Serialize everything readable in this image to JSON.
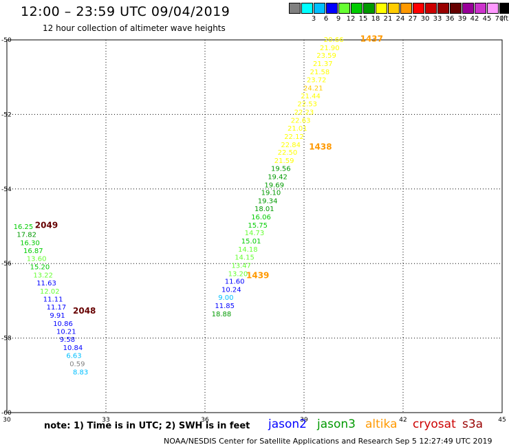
{
  "header": {
    "title": "12:00 – 23:59 UTC 09/04/2019",
    "subtitle": "12 hour collection of altimeter wave heights"
  },
  "legend": {
    "unit": "(ft)",
    "items": [
      {
        "label": "",
        "color": "#808080"
      },
      {
        "label": "3",
        "color": "#00ffff"
      },
      {
        "label": "6",
        "color": "#00bfff"
      },
      {
        "label": "9",
        "color": "#0000ff"
      },
      {
        "label": "12",
        "color": "#66ff33"
      },
      {
        "label": "15",
        "color": "#00cc00"
      },
      {
        "label": "18",
        "color": "#009900"
      },
      {
        "label": "21",
        "color": "#ffff00"
      },
      {
        "label": "24",
        "color": "#ffcc00"
      },
      {
        "label": "27",
        "color": "#ff9900"
      },
      {
        "label": "30",
        "color": "#ff0000"
      },
      {
        "label": "33",
        "color": "#cc0000"
      },
      {
        "label": "36",
        "color": "#990000"
      },
      {
        "label": "39",
        "color": "#660000"
      },
      {
        "label": "42",
        "color": "#990099"
      },
      {
        "label": "45",
        "color": "#cc33cc"
      },
      {
        "label": "70",
        "color": "#ff99ff"
      },
      {
        "label": "",
        "color": "#000000"
      }
    ]
  },
  "map": {
    "lon_range": [
      30,
      45
    ],
    "lat_range": [
      -60,
      -50
    ],
    "x_ticks": [
      "30",
      "33",
      "36",
      "39",
      "42",
      "45"
    ],
    "y_ticks": [
      "-50",
      "-52",
      "-54",
      "-56",
      "-58",
      "-60"
    ],
    "grid": "dotted",
    "time_labels": [
      {
        "text": "1437",
        "color": "#ff9900",
        "lon": 40.7,
        "lat": -49.95
      },
      {
        "text": "1438",
        "color": "#ff9900",
        "lon": 39.15,
        "lat": -52.85
      },
      {
        "text": "1439",
        "color": "#ff9900",
        "lon": 37.25,
        "lat": -56.3
      },
      {
        "text": "2049",
        "color": "#660000",
        "lon": 30.85,
        "lat": -54.95
      },
      {
        "text": "2048",
        "color": "#660000",
        "lon": 32.0,
        "lat": -57.25
      }
    ],
    "wave_heights": [
      {
        "text": "20.66",
        "color": "#ffff00",
        "lon": 39.6,
        "lat": -49.98
      },
      {
        "text": "21.90",
        "color": "#ffff00",
        "lon": 39.48,
        "lat": -50.2
      },
      {
        "text": "23.59",
        "color": "#ffff00",
        "lon": 39.38,
        "lat": -50.41
      },
      {
        "text": "21.37",
        "color": "#ffff00",
        "lon": 39.27,
        "lat": -50.63
      },
      {
        "text": "21.58",
        "color": "#ffff00",
        "lon": 39.18,
        "lat": -50.85
      },
      {
        "text": "23.72",
        "color": "#ffff00",
        "lon": 39.08,
        "lat": -51.06
      },
      {
        "text": "24.21",
        "color": "#ffcc00",
        "lon": 38.98,
        "lat": -51.28
      },
      {
        "text": "21.44",
        "color": "#ffff00",
        "lon": 38.9,
        "lat": -51.49
      },
      {
        "text": "22.53",
        "color": "#ffff00",
        "lon": 38.8,
        "lat": -51.71
      },
      {
        "text": "22.23",
        "color": "#ffff00",
        "lon": 38.7,
        "lat": -51.93
      },
      {
        "text": "22.63",
        "color": "#ffff00",
        "lon": 38.6,
        "lat": -52.15
      },
      {
        "text": "21.01",
        "color": "#ffff00",
        "lon": 38.5,
        "lat": -52.36
      },
      {
        "text": "22.12",
        "color": "#ffff00",
        "lon": 38.4,
        "lat": -52.58
      },
      {
        "text": "22.84",
        "color": "#ffff00",
        "lon": 38.3,
        "lat": -52.8
      },
      {
        "text": "22.50",
        "color": "#ffff00",
        "lon": 38.2,
        "lat": -53.01
      },
      {
        "text": "21.59",
        "color": "#ffff00",
        "lon": 38.1,
        "lat": -53.23
      },
      {
        "text": "19.56",
        "color": "#009900",
        "lon": 38.0,
        "lat": -53.44
      },
      {
        "text": "19.42",
        "color": "#009900",
        "lon": 37.9,
        "lat": -53.66
      },
      {
        "text": "19.69",
        "color": "#009900",
        "lon": 37.8,
        "lat": -53.88
      },
      {
        "text": "19.10",
        "color": "#009900",
        "lon": 37.7,
        "lat": -54.09
      },
      {
        "text": "19.34",
        "color": "#009900",
        "lon": 37.6,
        "lat": -54.31
      },
      {
        "text": "18.01",
        "color": "#009900",
        "lon": 37.5,
        "lat": -54.52
      },
      {
        "text": "16.06",
        "color": "#00cc00",
        "lon": 37.4,
        "lat": -54.74
      },
      {
        "text": "15.75",
        "color": "#00cc00",
        "lon": 37.3,
        "lat": -54.96
      },
      {
        "text": "14.73",
        "color": "#66ff33",
        "lon": 37.2,
        "lat": -55.17
      },
      {
        "text": "15.01",
        "color": "#00cc00",
        "lon": 37.1,
        "lat": -55.39
      },
      {
        "text": "14.18",
        "color": "#66ff33",
        "lon": 37.0,
        "lat": -55.61
      },
      {
        "text": "14.15",
        "color": "#66ff33",
        "lon": 36.9,
        "lat": -55.82
      },
      {
        "text": "13.47",
        "color": "#66ff33",
        "lon": 36.8,
        "lat": -56.04
      },
      {
        "text": "13.20",
        "color": "#66ff33",
        "lon": 36.7,
        "lat": -56.26
      },
      {
        "text": "11.60",
        "color": "#0000ff",
        "lon": 36.6,
        "lat": -56.47
      },
      {
        "text": "10.24",
        "color": "#0000ff",
        "lon": 36.5,
        "lat": -56.69
      },
      {
        "text": "9.00",
        "color": "#00bfff",
        "lon": 36.4,
        "lat": -56.9
      },
      {
        "text": "11.85",
        "color": "#0000ff",
        "lon": 36.3,
        "lat": -57.12
      },
      {
        "text": "18.88",
        "color": "#009900",
        "lon": 36.2,
        "lat": -57.34
      },
      {
        "text": "16.25",
        "color": "#00cc00",
        "lon": 30.2,
        "lat": -55.0
      },
      {
        "text": "17.82",
        "color": "#009900",
        "lon": 30.3,
        "lat": -55.21
      },
      {
        "text": "16.30",
        "color": "#00cc00",
        "lon": 30.4,
        "lat": -55.43
      },
      {
        "text": "16.87",
        "color": "#00cc00",
        "lon": 30.5,
        "lat": -55.65
      },
      {
        "text": "13.60",
        "color": "#66ff33",
        "lon": 30.6,
        "lat": -55.86
      },
      {
        "text": "15.20",
        "color": "#00cc00",
        "lon": 30.7,
        "lat": -56.08
      },
      {
        "text": "13.22",
        "color": "#66ff33",
        "lon": 30.8,
        "lat": -56.3
      },
      {
        "text": "11.63",
        "color": "#0000ff",
        "lon": 30.9,
        "lat": -56.51
      },
      {
        "text": "12.02",
        "color": "#66ff33",
        "lon": 31.0,
        "lat": -56.73
      },
      {
        "text": "11.11",
        "color": "#0000ff",
        "lon": 31.1,
        "lat": -56.95
      },
      {
        "text": "11.17",
        "color": "#0000ff",
        "lon": 31.2,
        "lat": -57.16
      },
      {
        "text": "9.91",
        "color": "#0000ff",
        "lon": 31.3,
        "lat": -57.38
      },
      {
        "text": "10.86",
        "color": "#0000ff",
        "lon": 31.4,
        "lat": -57.6
      },
      {
        "text": "10.21",
        "color": "#0000ff",
        "lon": 31.5,
        "lat": -57.81
      },
      {
        "text": "9.58",
        "color": "#0000ff",
        "lon": 31.6,
        "lat": -58.03
      },
      {
        "text": "10.84",
        "color": "#0000ff",
        "lon": 31.7,
        "lat": -58.25
      },
      {
        "text": "6.63",
        "color": "#00bfff",
        "lon": 31.8,
        "lat": -58.46
      },
      {
        "text": "0.59",
        "color": "#808080",
        "lon": 31.9,
        "lat": -58.68
      },
      {
        "text": "8.83",
        "color": "#00bfff",
        "lon": 32.0,
        "lat": -58.9
      }
    ]
  },
  "footer": {
    "note": "note:  1) Time is in UTC;  2) SWH is in feet",
    "satellites": [
      {
        "name": "jason2",
        "color": "#0000ff"
      },
      {
        "name": "jason3",
        "color": "#009900"
      },
      {
        "name": "altika",
        "color": "#ff9900"
      },
      {
        "name": "cryosat",
        "color": "#cc0000"
      },
      {
        "name": "s3a",
        "color": "#990000"
      }
    ],
    "credit": "NOAA/NESDIS Center for Satellite Applications and Research      Sep  5 12:27:49 UTC 2019"
  }
}
